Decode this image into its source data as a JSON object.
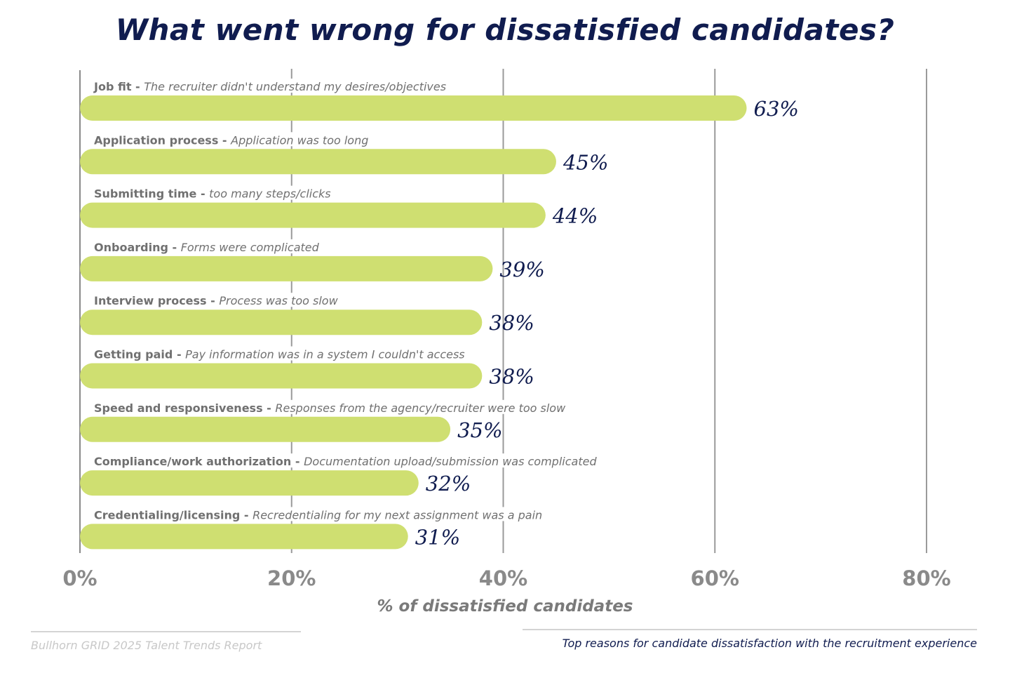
{
  "chart_data": {
    "type": "bar",
    "orientation": "horizontal",
    "title": "What went wrong for dissatisfied candidates?",
    "xlabel": "% of dissatisfied candidates",
    "ylabel": "",
    "xlim": [
      0,
      80
    ],
    "xticks": [
      0,
      20,
      40,
      60,
      80
    ],
    "xtick_labels": [
      "0%",
      "20%",
      "40%",
      "60%",
      "80%"
    ],
    "grid": true,
    "categories": [
      {
        "label": "Job fit - ",
        "detail": "The recruiter didn't understand my desires/objectives"
      },
      {
        "label": "Application process - ",
        "detail": "Application was too long"
      },
      {
        "label": "Submitting time - ",
        "detail": "too many steps/clicks"
      },
      {
        "label": "Onboarding - ",
        "detail": "Forms were complicated"
      },
      {
        "label": "Interview process - ",
        "detail": "Process was too slow"
      },
      {
        "label": "Getting paid - ",
        "detail": "Pay information was in a system I couldn't access"
      },
      {
        "label": "Speed and responsiveness - ",
        "detail": "Responses from the agency/recruiter were too slow"
      },
      {
        "label": "Compliance/work authorization - ",
        "detail": "Documentation upload/submission was complicated"
      },
      {
        "label": "Credentialing/licensing - ",
        "detail": "Recredentialing for my next assignment was a pain"
      }
    ],
    "values": [
      63,
      45,
      44,
      39,
      38,
      38,
      35,
      32,
      31
    ],
    "value_labels": [
      "63%",
      "45%",
      "44%",
      "39%",
      "38%",
      "38%",
      "35%",
      "32%",
      "31%"
    ],
    "colors": {
      "bar": "#cfdf71",
      "title": "#101c4f",
      "grid": "#9a9a9a",
      "label": "#707070"
    }
  },
  "footer": {
    "source": "Bullhorn GRID 2025 Talent Trends Report",
    "caption": "Top reasons for candidate dissatisfaction with the recruitment experience"
  }
}
